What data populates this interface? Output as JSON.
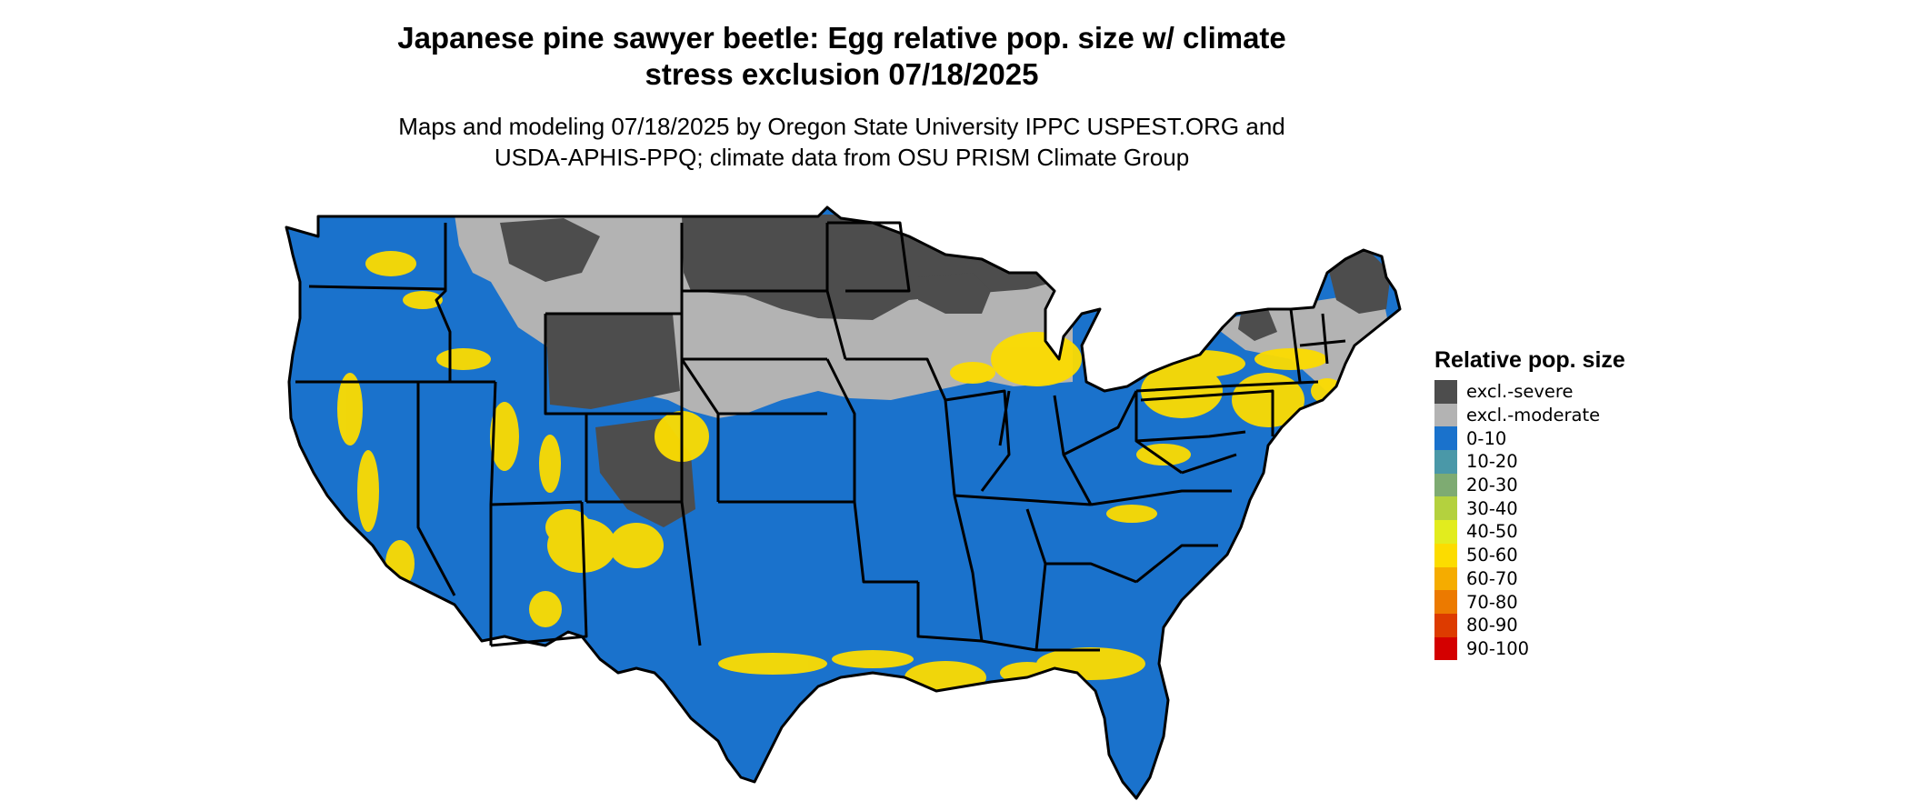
{
  "title_line1": "Japanese pine sawyer beetle: Egg relative pop. size w/ climate",
  "title_line2": "stress exclusion 07/18/2025",
  "subtitle_line1": "Maps and modeling 07/18/2025 by Oregon State University IPPC USPEST.ORG and",
  "subtitle_line2": "USDA-APHIS-PPQ; climate data from OSU PRISM Climate Group",
  "legend": {
    "title": "Relative pop. size",
    "items": [
      {
        "label": "excl.-severe",
        "color": "#4d4d4d"
      },
      {
        "label": "excl.-moderate",
        "color": "#b3b3b3"
      },
      {
        "label": "0-10",
        "color": "#1a72cc"
      },
      {
        "label": "10-20",
        "color": "#4a98a8"
      },
      {
        "label": "20-30",
        "color": "#7eab72"
      },
      {
        "label": "30-40",
        "color": "#b4d13e"
      },
      {
        "label": "40-50",
        "color": "#e2ec1e"
      },
      {
        "label": "50-60",
        "color": "#fcdc00"
      },
      {
        "label": "60-70",
        "color": "#f5ac00"
      },
      {
        "label": "70-80",
        "color": "#ec7a00"
      },
      {
        "label": "80-90",
        "color": "#dd3b00"
      },
      {
        "label": "90-100",
        "color": "#d40000"
      }
    ]
  }
}
